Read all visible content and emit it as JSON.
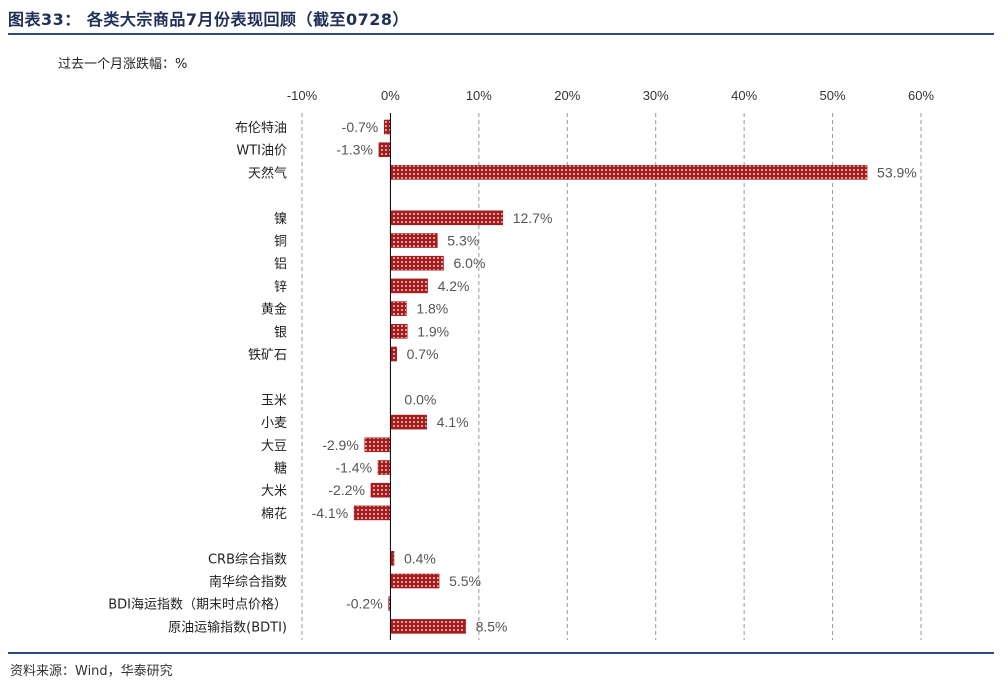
{
  "figure": {
    "title": "图表33： 各类大宗商品7月份表现回顾（截至0728）",
    "unit_label": "过去一个月涨跌幅：%",
    "source": "资料来源：Wind，华泰研究"
  },
  "colors": {
    "bar": "#a61c1c",
    "dot": "#ffffff",
    "axis": "#000000",
    "grid": "#999999",
    "rule": "#2e4a7a"
  },
  "chart_data": {
    "type": "bar",
    "orientation": "horizontal",
    "title": "各类大宗商品7月份表现回顾（截至0728）",
    "xlabel": "过去一个月涨跌幅：%",
    "ylabel": "",
    "xlim": [
      -10,
      60
    ],
    "xticks": [
      -10,
      0,
      10,
      20,
      30,
      40,
      50,
      60
    ],
    "xtick_labels": [
      "-10%",
      "0%",
      "10%",
      "20%",
      "30%",
      "40%",
      "50%",
      "60%"
    ],
    "grid": "vertical dashed",
    "groups": [
      {
        "categories": [
          "布伦特油",
          "WTI油价",
          "天然气"
        ],
        "values": [
          -0.7,
          -1.3,
          53.9
        ],
        "labels": [
          "-0.7%",
          "-1.3%",
          "53.9%"
        ]
      },
      {
        "categories": [
          "镍",
          "铜",
          "铝",
          "锌",
          "黄金",
          "银",
          "铁矿石"
        ],
        "values": [
          12.7,
          5.3,
          6.0,
          4.2,
          1.8,
          1.9,
          0.7
        ],
        "labels": [
          "12.7%",
          "5.3%",
          "6.0%",
          "4.2%",
          "1.8%",
          "1.9%",
          "0.7%"
        ]
      },
      {
        "categories": [
          "玉米",
          "小麦",
          "大豆",
          "糖",
          "大米",
          "棉花"
        ],
        "values": [
          0.0,
          4.1,
          -2.9,
          -1.4,
          -2.2,
          -4.1
        ],
        "labels": [
          "0.0%",
          "4.1%",
          "-2.9%",
          "-1.4%",
          "-2.2%",
          "-4.1%"
        ]
      },
      {
        "categories": [
          "CRB综合指数",
          "南华综合指数",
          "BDI海运指数（期末时点价格）",
          "原油运输指数(BDTI)"
        ],
        "values": [
          0.4,
          5.5,
          -0.2,
          8.5
        ],
        "labels": [
          "0.4%",
          "5.5%",
          "-0.2%",
          "8.5%"
        ]
      }
    ]
  }
}
